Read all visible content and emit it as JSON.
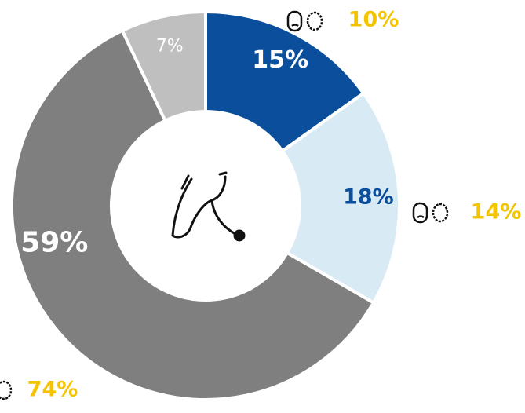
{
  "chart_data": {
    "type": "donut",
    "categories": [
      null,
      null,
      null,
      null
    ],
    "values": [
      15,
      18,
      59,
      7
    ],
    "value_labels": [
      "15%",
      "18%",
      "59%",
      "7%"
    ],
    "colors": [
      "#0b4f9c",
      "#d8ebf4",
      "#7f7f7f",
      "#bfbfbf"
    ],
    "label_colors": [
      "#ffffff",
      "#0b4f9c",
      "#ffffff",
      "#ffffff"
    ],
    "annotations": [
      "10%",
      "14%",
      "74%"
    ],
    "annotation_color": "#f5c400"
  }
}
